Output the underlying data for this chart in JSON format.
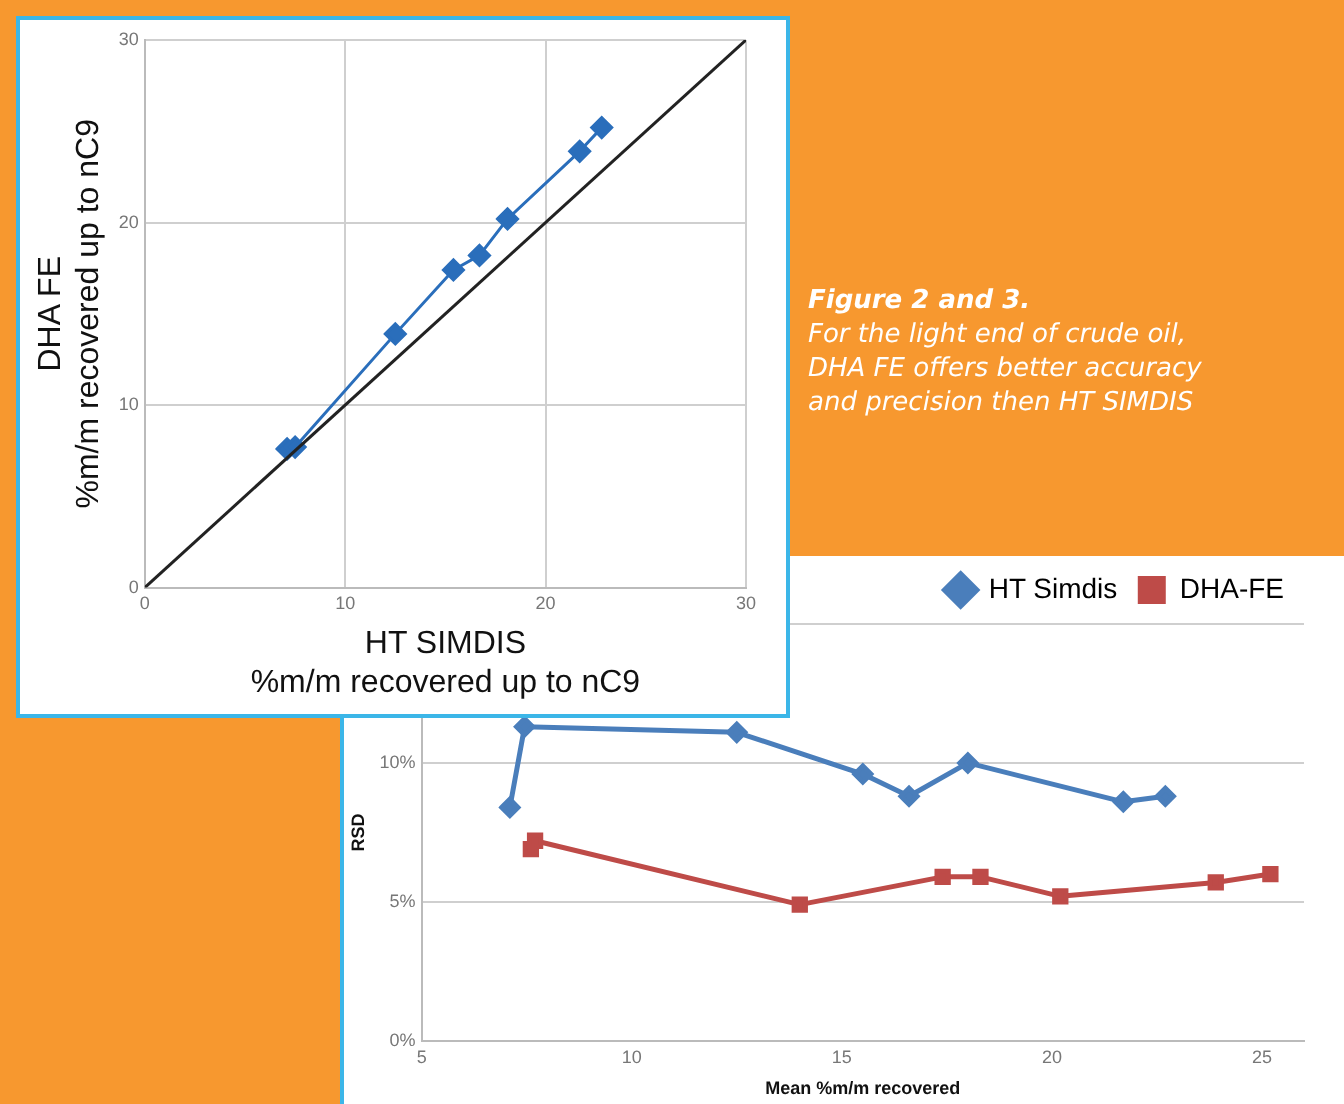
{
  "chart_data": [
    {
      "type": "line",
      "xlabel": "HT SIMDIS\n%m/m recovered up to nC9",
      "ylabel": "DHA FE\n%m/m recovered up to nC9",
      "xlim": [
        0,
        30
      ],
      "ylim": [
        0,
        30
      ],
      "xticks": [
        0,
        10,
        20,
        30
      ],
      "yticks": [
        0,
        10,
        20,
        30
      ],
      "grid": true,
      "legend": false,
      "series": [
        {
          "color": "#222222",
          "marker": "none",
          "x": [
            0,
            30
          ],
          "values": [
            0,
            30
          ]
        },
        {
          "color": "#2a6ebb",
          "marker": "diamond",
          "x": [
            7.1,
            7.5,
            12.5,
            15.4,
            16.7,
            18.1,
            21.7,
            22.8
          ],
          "values": [
            7.6,
            7.7,
            13.9,
            17.4,
            18.2,
            20.2,
            23.9,
            25.2
          ]
        }
      ]
    },
    {
      "type": "other",
      "title": "Figure 2 and 3.",
      "subtitle": "For the light end of crude oil, DHA FE offers better accuracy and precision then HT SIMDIS"
    },
    {
      "type": "line",
      "xlabel": "Mean %m/m recovered",
      "ylabel": "RSD",
      "xlim": [
        5,
        26
      ],
      "ylim": [
        0,
        15
      ],
      "xticks": [
        5,
        10,
        15,
        20,
        25
      ],
      "yticks": [
        {
          "value": 0,
          "label": "0%"
        },
        {
          "value": 5,
          "label": "5%"
        },
        {
          "value": 10,
          "label": "10%"
        },
        {
          "value": 15,
          "label": null
        }
      ],
      "grid": "y",
      "legend": "top right",
      "series": [
        {
          "name": "HT Simdis",
          "color": "#4a7ebb",
          "marker": "diamond",
          "x": [
            7.1,
            7.45,
            12.5,
            15.5,
            16.6,
            18.0,
            21.7,
            22.7
          ],
          "values": [
            8.4,
            11.3,
            11.1,
            9.6,
            8.8,
            10.0,
            8.6,
            8.8
          ]
        },
        {
          "name": "DHA-FE",
          "color": "#be4b48",
          "marker": "square",
          "x": [
            7.6,
            7.7,
            14.0,
            17.4,
            18.3,
            20.2,
            23.9,
            25.2
          ],
          "values": [
            6.9,
            7.2,
            4.9,
            5.9,
            5.9,
            5.2,
            5.7,
            6.0
          ]
        }
      ]
    }
  ]
}
